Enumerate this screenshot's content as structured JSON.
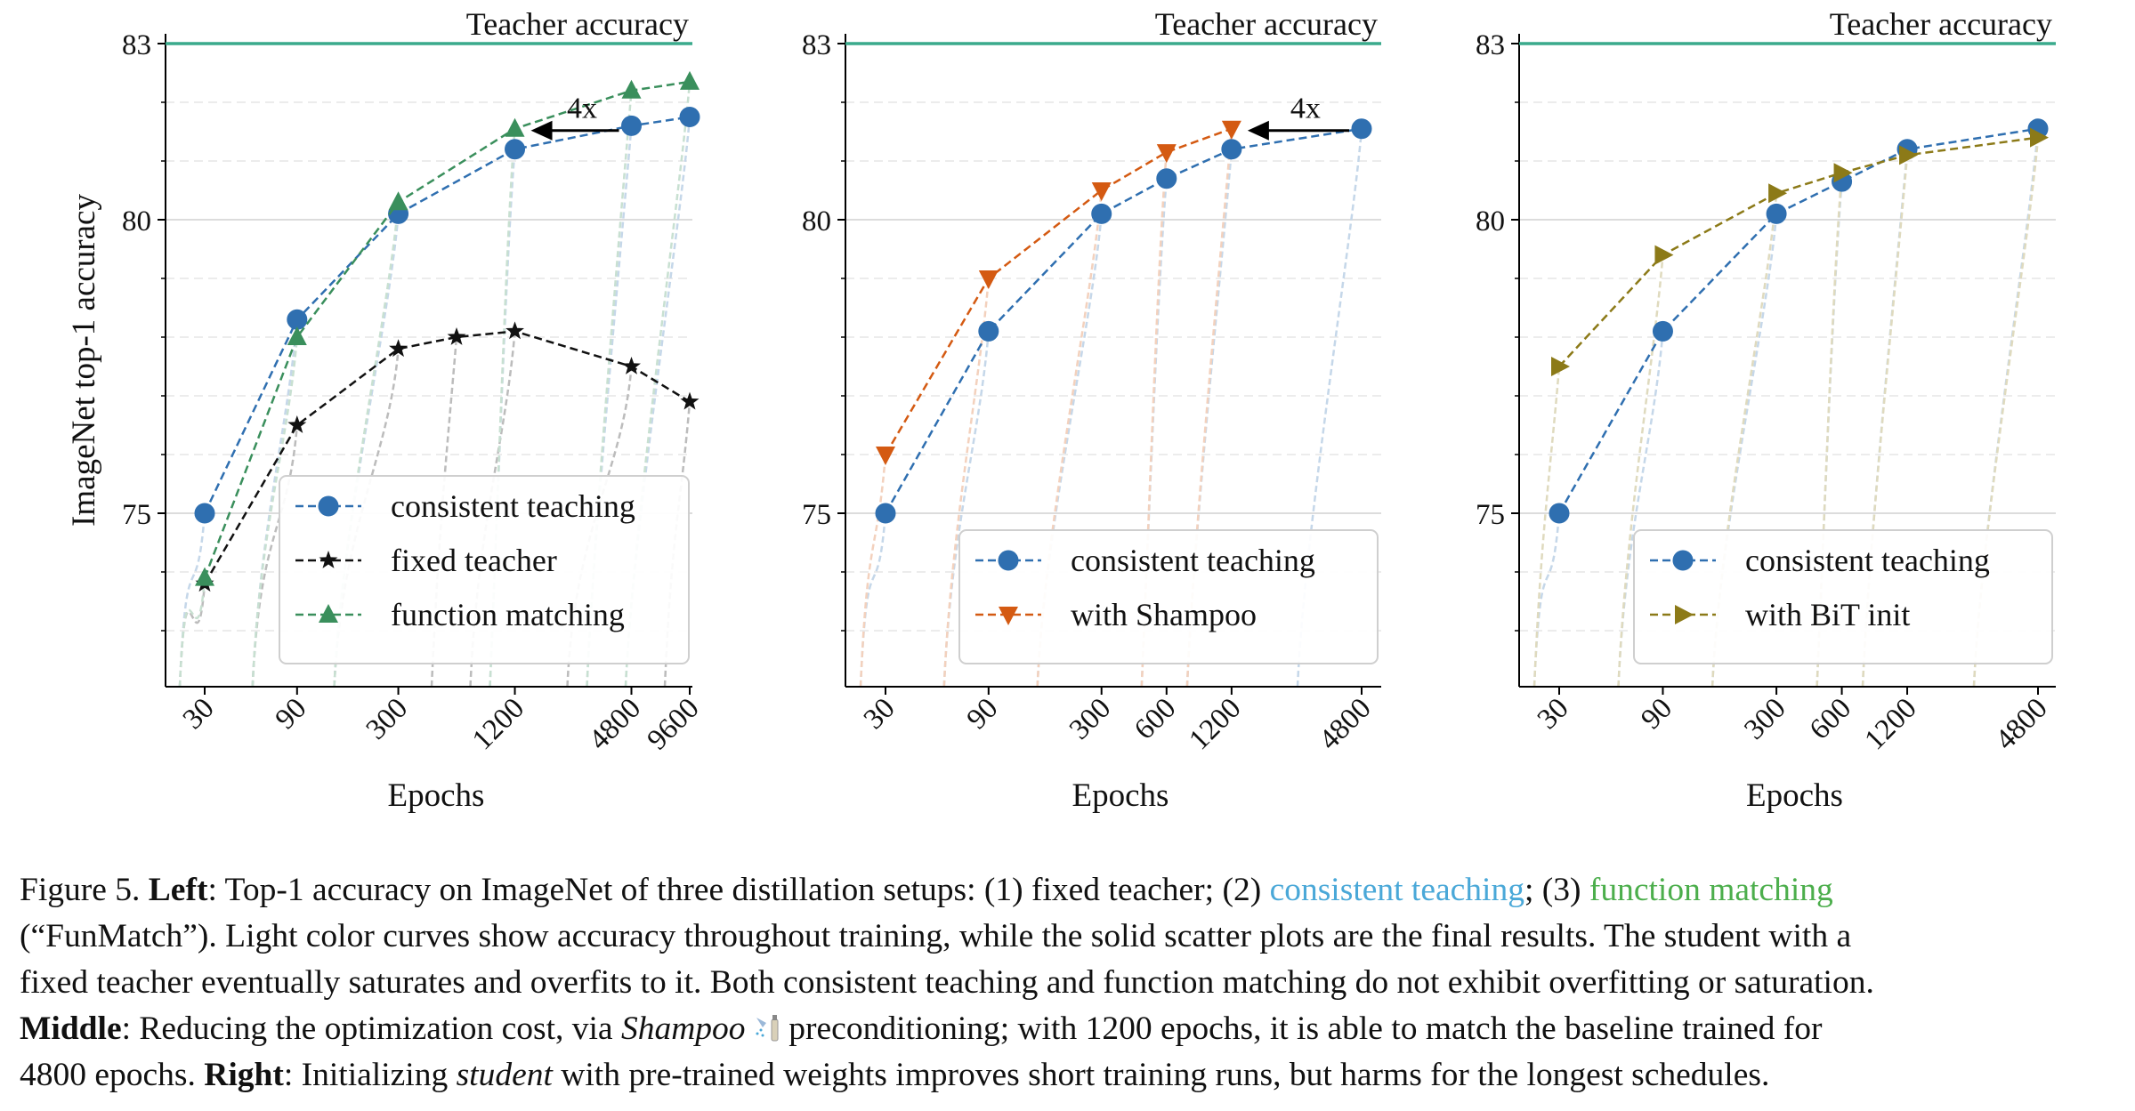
{
  "chart_data": [
    {
      "type": "line",
      "panel": "left",
      "title": "",
      "xlabel": "Epochs",
      "ylabel": "ImageNet top-1 accuracy",
      "xscale": "log",
      "x_ticks": [
        30,
        90,
        300,
        1200,
        4800,
        9600
      ],
      "y_ticks": [
        75,
        80,
        83
      ],
      "ylim": [
        72,
        83.5
      ],
      "teacher_line": {
        "value": 83,
        "label": "Teacher accuracy"
      },
      "annotation": {
        "text": "4x",
        "from": 4800,
        "to": 1200,
        "y": 81.55
      },
      "legend_position": "lower-right",
      "series": [
        {
          "name": "consistent teaching",
          "color": "#2f6fb0",
          "marker": "circle",
          "x": [
            30,
            90,
            300,
            1200,
            4800,
            9600
          ],
          "y": [
            75.0,
            78.3,
            80.1,
            81.2,
            81.6,
            81.75
          ]
        },
        {
          "name": "fixed teacher",
          "color": "#111111",
          "marker": "star",
          "x": [
            30,
            90,
            300,
            600,
            1200,
            4800,
            9600
          ],
          "y": [
            73.8,
            76.5,
            77.8,
            78.0,
            78.1,
            77.5,
            76.9
          ]
        },
        {
          "name": "function matching",
          "color": "#3a8f5c",
          "marker": "triangle-up",
          "x": [
            30,
            90,
            300,
            1200,
            4800,
            9600
          ],
          "y": [
            73.9,
            78.0,
            80.3,
            81.55,
            82.2,
            82.35
          ]
        }
      ]
    },
    {
      "type": "line",
      "panel": "middle",
      "title": "",
      "xlabel": "Epochs",
      "ylabel": "",
      "xscale": "log",
      "x_ticks": [
        30,
        90,
        300,
        600,
        1200,
        4800
      ],
      "y_ticks": [
        75,
        80,
        83
      ],
      "ylim": [
        72,
        83.5
      ],
      "teacher_line": {
        "value": 83,
        "label": "Teacher accuracy"
      },
      "annotation": {
        "text": "4x",
        "from": 4800,
        "to": 1200,
        "y": 81.55
      },
      "legend_position": "lower-right",
      "series": [
        {
          "name": "consistent teaching",
          "color": "#2f6fb0",
          "marker": "circle",
          "x": [
            30,
            90,
            300,
            600,
            1200,
            4800
          ],
          "y": [
            75.0,
            78.1,
            80.1,
            80.7,
            81.2,
            81.55
          ]
        },
        {
          "name": "with Shampoo",
          "color": "#d45a12",
          "marker": "triangle-down",
          "x": [
            30,
            90,
            300,
            600,
            1200
          ],
          "y": [
            76.0,
            79.0,
            80.5,
            81.15,
            81.55
          ]
        }
      ]
    },
    {
      "type": "line",
      "panel": "right",
      "title": "",
      "xlabel": "Epochs",
      "ylabel": "",
      "xscale": "log",
      "x_ticks": [
        30,
        90,
        300,
        600,
        1200,
        4800
      ],
      "y_ticks": [
        75,
        80,
        83
      ],
      "ylim": [
        72,
        83.5
      ],
      "teacher_line": {
        "value": 83,
        "label": "Teacher accuracy"
      },
      "legend_position": "lower-right",
      "series": [
        {
          "name": "consistent teaching",
          "color": "#2f6fb0",
          "marker": "circle",
          "x": [
            30,
            90,
            300,
            600,
            1200,
            4800
          ],
          "y": [
            75.0,
            78.1,
            80.1,
            80.65,
            81.2,
            81.55
          ]
        },
        {
          "name": "with BiT init",
          "color": "#8c7a18",
          "marker": "triangle-right",
          "x": [
            30,
            90,
            300,
            600,
            1200,
            4800
          ],
          "y": [
            77.5,
            79.4,
            80.45,
            80.8,
            81.1,
            81.4
          ]
        }
      ]
    }
  ],
  "caption": {
    "fig": "Figure 5.",
    "left_label": "Left",
    "left_text": ": Top-1 accuracy on ImageNet of three distillation setups: (1) fixed teacher; (2) ",
    "consistent": "consistent teaching",
    "sep3": "; (3) ",
    "fm": "function matching",
    "line2": "(“FunMatch”). Light color curves show accuracy throughout training, while the solid scatter plots are the final results. The student with a",
    "line3": "fixed teacher eventually saturates and overfits to it. Both consistent teaching and function matching do not exhibit overfitting or saturation.",
    "middle_label": "Middle",
    "middle_a": ": Reducing the optimization cost, via ",
    "shampoo": "Shampoo",
    "middle_b": " preconditioning; with 1200 epochs, it is able to match the baseline trained for",
    "line5a": "4800 epochs. ",
    "right_label": "Right",
    "line5b": ": Initializing ",
    "student": "student",
    "line5c": " with pre-trained weights improves short training runs, but harms for the longest schedules.",
    "colors": {
      "consistent": "#4aa8d8",
      "function_matching": "#4cae4c"
    }
  }
}
